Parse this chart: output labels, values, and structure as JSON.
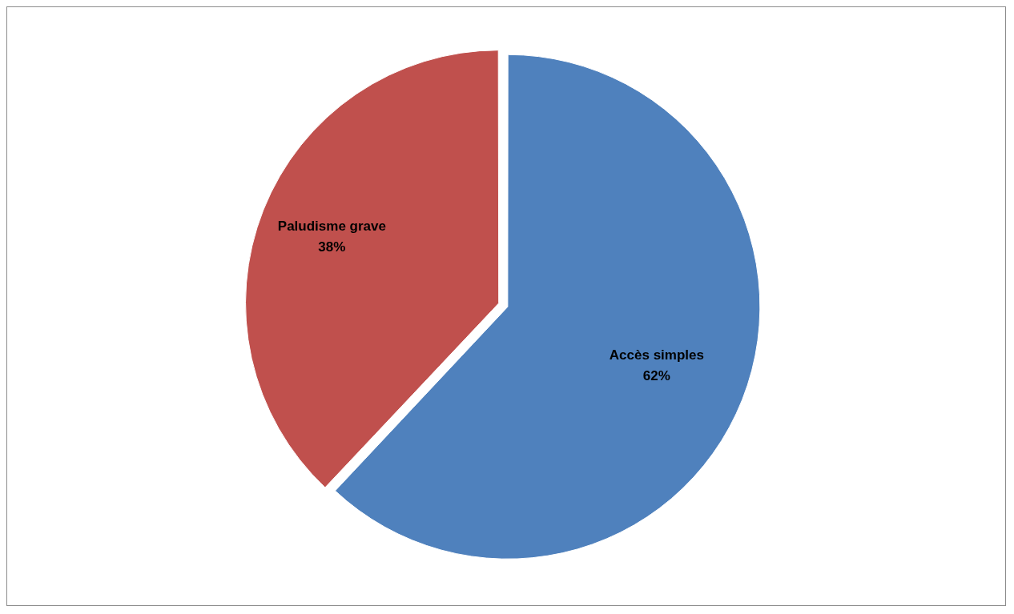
{
  "chart_data": {
    "type": "pie",
    "categories": [
      "Accès simples",
      "Paludisme grave"
    ],
    "values": [
      62,
      38
    ],
    "colors": [
      "#4f81bd",
      "#c0504d"
    ],
    "value_labels": [
      "62%",
      "38%"
    ]
  }
}
